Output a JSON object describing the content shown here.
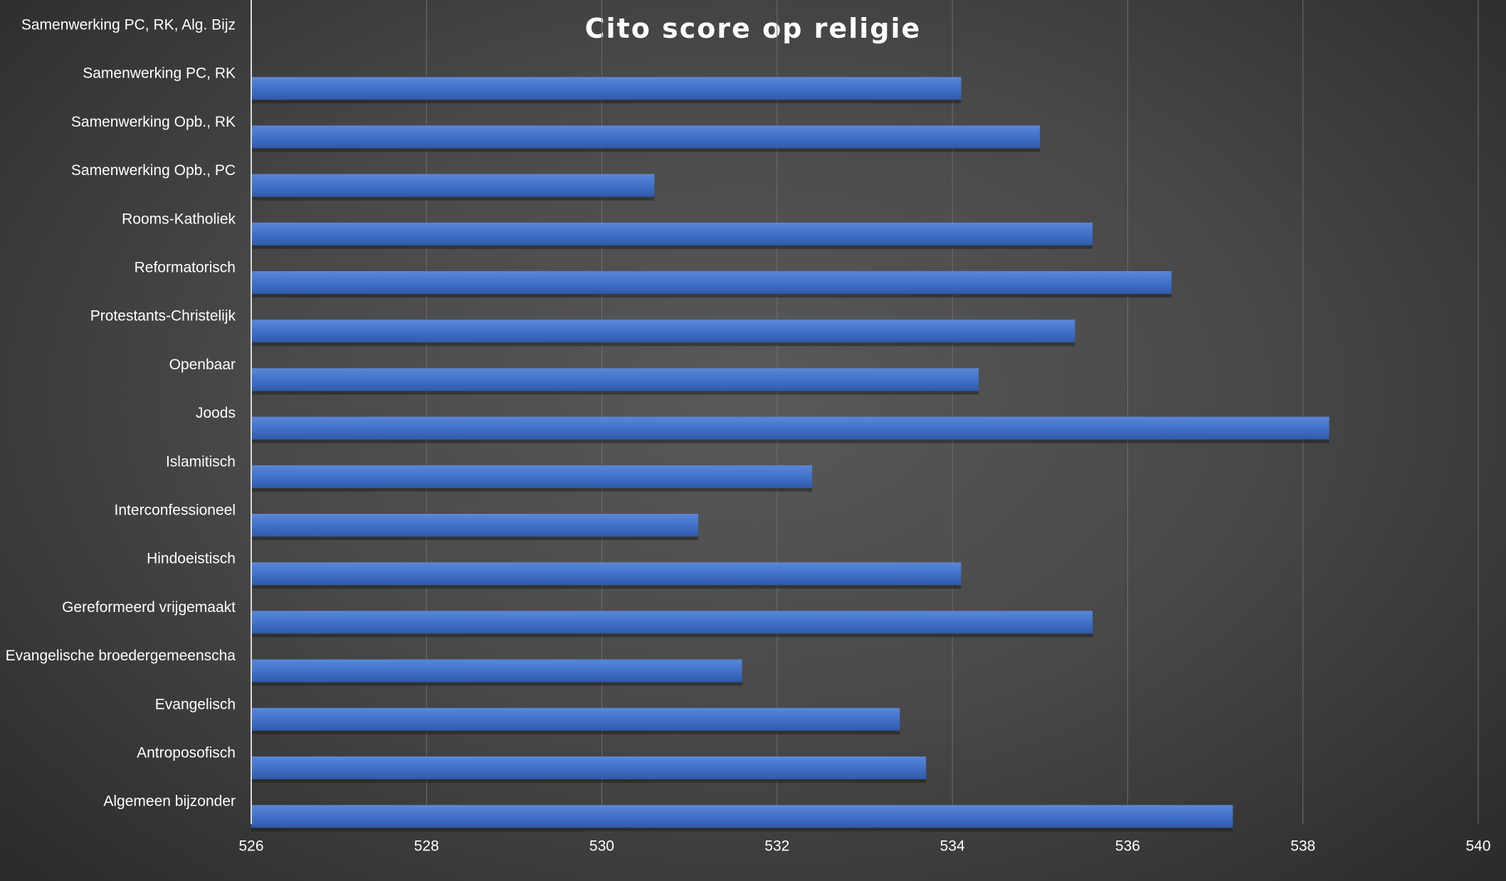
{
  "chart_data": {
    "type": "bar",
    "orientation": "horizontal",
    "title": "Cito score op religie",
    "xlabel": "",
    "ylabel": "",
    "xlim": [
      526,
      540
    ],
    "x_ticks": [
      526,
      528,
      530,
      532,
      534,
      536,
      538,
      540
    ],
    "grid": "vertical",
    "legend": "none",
    "bar_color": "#4472C4",
    "categories": [
      "Samenwerking PC, RK, Alg. Bijz",
      "Samenwerking PC, RK",
      "Samenwerking Opb., RK",
      "Samenwerking Opb., PC",
      "Rooms-Katholiek",
      "Reformatorisch",
      "Protestants-Christelijk",
      "Openbaar",
      "Joods",
      "Islamitisch",
      "Interconfessioneel",
      "Hindoeistisch",
      "Gereformeerd vrijgemaakt",
      "Evangelische broedergemeenscha",
      "Evangelisch",
      "Antroposofisch",
      "Algemeen bijzonder"
    ],
    "values": [
      526,
      534.1,
      535.0,
      530.6,
      535.6,
      536.5,
      535.4,
      534.3,
      538.3,
      532.4,
      531.1,
      534.1,
      535.6,
      531.6,
      533.4,
      533.7,
      537.2
    ]
  }
}
